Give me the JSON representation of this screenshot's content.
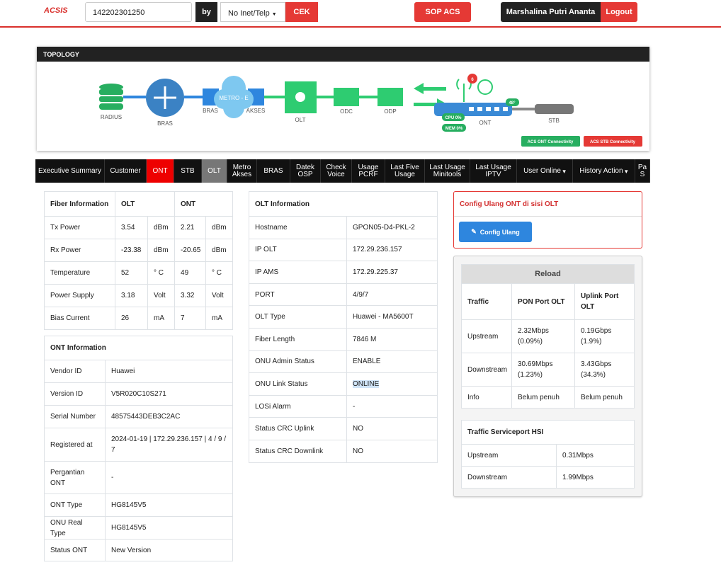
{
  "header": {
    "logo": "ACSIS",
    "search": "142202301250",
    "by": "by",
    "filter": "No Inet/Telp",
    "cek": "CEK",
    "sop": "SOP ACS",
    "user": "Marshalina Putri Ananta",
    "logout": "Logout"
  },
  "topology": {
    "title": "TOPOLOGY",
    "nodes": {
      "radius": "RADIUS",
      "bras": "BRAS",
      "bras_akses": "BRAS",
      "metro": "METRO - E",
      "akses": "AKSES",
      "olt": "OLT",
      "odc": "ODC",
      "odp": "ODP",
      "ont": "ONT",
      "stb": "STB"
    },
    "alarm_count": "6",
    "temperature": "48°",
    "cpu": "CPU 0%",
    "mem": "MEM 0%",
    "ont_connectivity": "ACS ONT Connectivity",
    "stb_connectivity": "ACS STB Connectivity"
  },
  "tabs": [
    "Executive Summary",
    "Customer",
    "ONT",
    "STB",
    "OLT",
    "Metro Akses",
    "BRAS",
    "Datek OSP",
    "Check Voice",
    "Usage PCRF",
    "Last Five Usage",
    "Last Usage Minitools",
    "Last Usage IPTV",
    "User Online",
    "History Action",
    "Pa S"
  ],
  "fiber_information": {
    "header": [
      "Fiber Information",
      "OLT",
      "ONT"
    ],
    "rows": [
      [
        "Tx Power",
        "3.54",
        "dBm",
        "2.21",
        "dBm"
      ],
      [
        "Rx Power",
        "-23.38",
        "dBm",
        "-20.65",
        "dBm"
      ],
      [
        "Temperature",
        "52",
        "° C",
        "49",
        "° C"
      ],
      [
        "Power Supply",
        "3.18",
        "Volt",
        "3.32",
        "Volt"
      ],
      [
        "Bias Current",
        "26",
        "mA",
        "7",
        "mA"
      ]
    ]
  },
  "ont_information": {
    "title": "ONT Information",
    "rows": [
      [
        "Vendor ID",
        "Huawei"
      ],
      [
        "Version ID",
        "V5R020C10S271"
      ],
      [
        "Serial Number",
        "48575443DEB3C2AC"
      ],
      [
        "Registered at",
        "2024-01-19 | 172.29.236.157 | 4 / 9 / 7"
      ],
      [
        "Pergantian ONT",
        "-"
      ],
      [
        "ONT Type",
        "HG8145V5"
      ],
      [
        "ONU Real Type",
        "HG8145V5"
      ],
      [
        "Status ONT",
        "New Version"
      ]
    ]
  },
  "olt_information": {
    "title": "OLT Information",
    "rows": [
      [
        "Hostname",
        "GPON05-D4-PKL-2"
      ],
      [
        "IP OLT",
        "172.29.236.157"
      ],
      [
        "IP AMS",
        "172.29.225.37"
      ],
      [
        "PORT",
        "4/9/7"
      ],
      [
        "OLT Type",
        "Huawei - MA5600T"
      ],
      [
        "Fiber Length",
        "7846 M"
      ],
      [
        "ONU Admin Status",
        "ENABLE"
      ],
      [
        "ONU Link Status",
        "ONLINE"
      ],
      [
        "LOSi Alarm",
        "-"
      ],
      [
        "Status CRC Uplink",
        "NO"
      ],
      [
        "Status CRC Downlink",
        "NO"
      ]
    ]
  },
  "config": {
    "title": "Config Ulang ONT di sisi OLT",
    "button": "Config Ulang"
  },
  "traffic": {
    "title": "Reload",
    "header": [
      "Traffic",
      "PON Port OLT",
      "Uplink Port OLT"
    ],
    "rows": [
      [
        "Upstream",
        "2.32Mbps (0.09%)",
        "0.19Gbps (1.9%)"
      ],
      [
        "Downstream",
        "30.69Mbps (1.23%)",
        "3.43Gbps (34.3%)"
      ],
      [
        "Info",
        "Belum penuh",
        "Belum penuh"
      ]
    ]
  },
  "serviceport": {
    "title": "Traffic Serviceport HSI",
    "rows": [
      [
        "Upstream",
        "0.31Mbps"
      ],
      [
        "Downstream",
        "1.99Mbps"
      ]
    ]
  }
}
